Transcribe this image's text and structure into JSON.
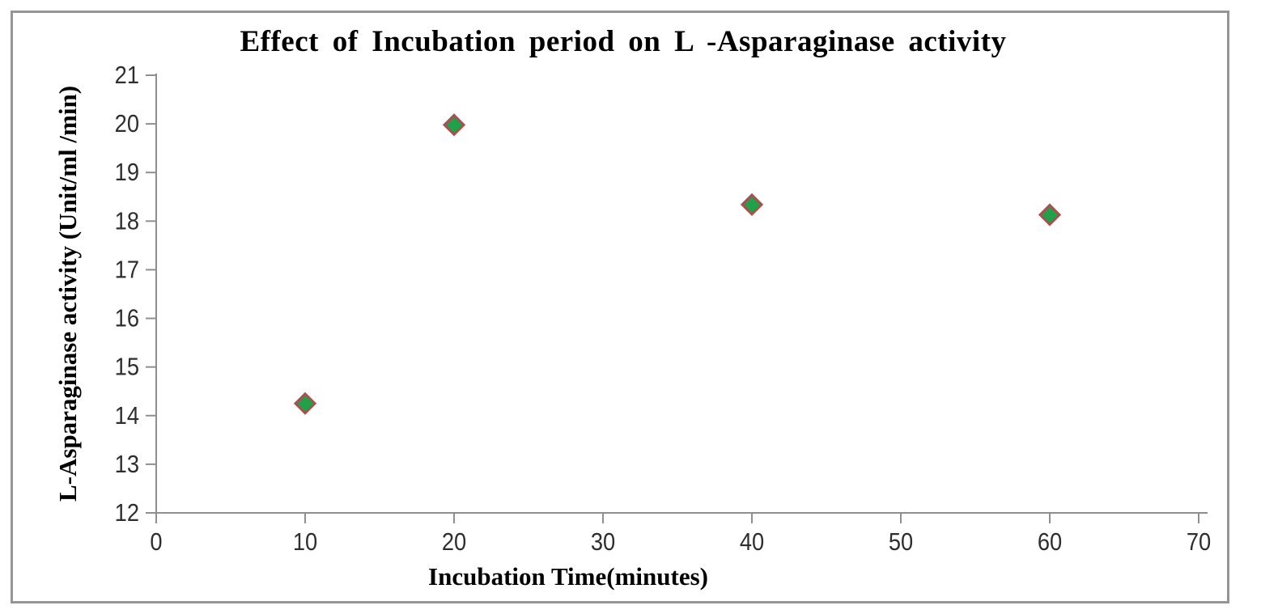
{
  "chart_data": {
    "type": "scatter",
    "title": "Effect of Incubation period on L -Asparaginase activity",
    "xlabel": "Incubation Time(minutes)",
    "ylabel": "L-Asparaginase activity (Unit/ml /min)",
    "xlim": [
      0,
      70
    ],
    "ylim": [
      12,
      21
    ],
    "xticks": [
      0,
      10,
      20,
      30,
      40,
      50,
      60,
      70
    ],
    "yticks": [
      12,
      13,
      14,
      15,
      16,
      17,
      18,
      19,
      20,
      21
    ],
    "grid": false,
    "legend": "none",
    "series": [
      {
        "name": "L-Asparaginase activity",
        "points": [
          {
            "x": 10,
            "y": 14.25
          },
          {
            "x": 20,
            "y": 19.98
          },
          {
            "x": 40,
            "y": 18.34
          },
          {
            "x": 60,
            "y": 18.13
          }
        ]
      }
    ],
    "marker": {
      "shape": "diamond",
      "fill_color": "#1FA049",
      "border_color": "#A9504F"
    },
    "colors": {
      "axis_line": "#8f8f8f",
      "tick_label": "#2e2e2e",
      "frame_border": "#959595",
      "title_text": "#000000",
      "background": "#ffffff"
    }
  }
}
